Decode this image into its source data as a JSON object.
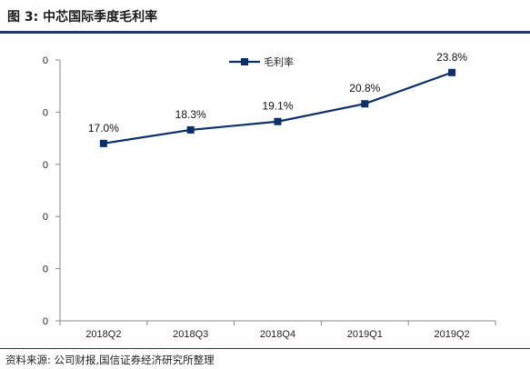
{
  "header": {
    "title": "图 3:  中芯国际季度毛利率"
  },
  "chart_data": {
    "type": "line",
    "title": "",
    "xlabel": "",
    "ylabel": "",
    "categories": [
      "2018Q2",
      "2018Q3",
      "2018Q4",
      "2019Q1",
      "2019Q2"
    ],
    "series": [
      {
        "name": "毛利率",
        "values": [
          17.0,
          18.3,
          19.1,
          20.8,
          23.8
        ],
        "labels": [
          "17.0%",
          "18.3%",
          "19.1%",
          "20.8%",
          "23.8%"
        ],
        "color": "#0b2f6b",
        "marker": "square"
      }
    ],
    "ylim": [
      0,
      25
    ],
    "y_tick_labels": [
      "0",
      "0",
      "0",
      "0",
      "0",
      "0"
    ],
    "grid": false,
    "legend": "top-center"
  },
  "source": {
    "text": "资料来源: 公司财报,国信证券经济研究所整理"
  }
}
